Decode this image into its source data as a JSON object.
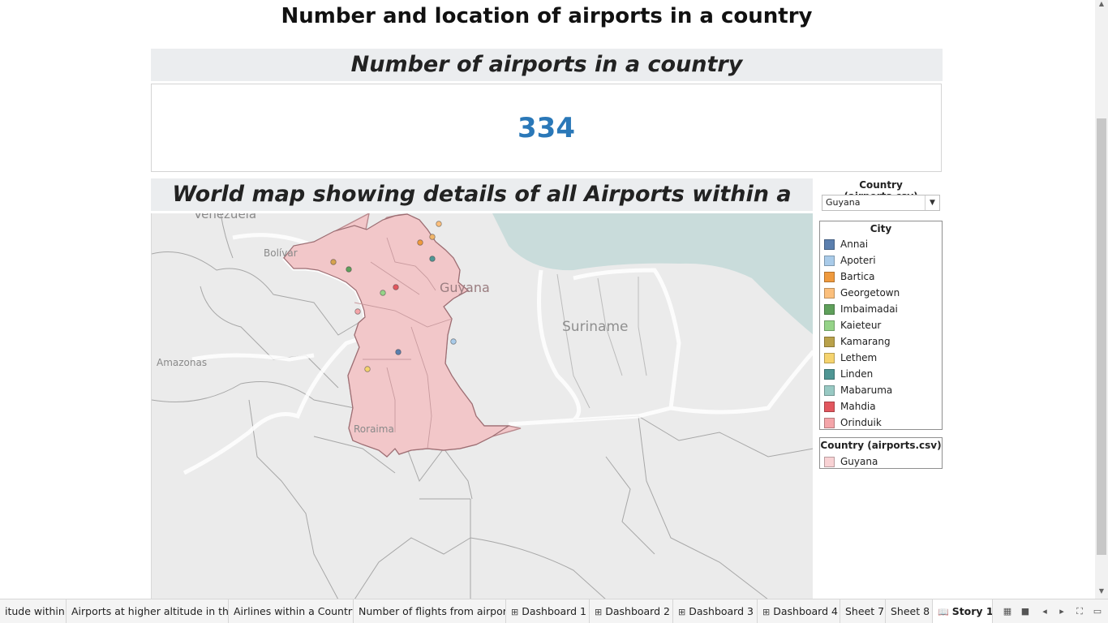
{
  "story": {
    "title": "Number and location of airports in a country"
  },
  "kpi": {
    "header": "Number of airports in a country",
    "value": "334"
  },
  "map": {
    "header": "World map showing details of all Airports within a Country",
    "labels": {
      "venezuela": "Venezuela",
      "bolivar": "Bolívar",
      "amazonas": "Amazonas",
      "roraima": "Roraima",
      "suriname": "Suriname",
      "guyana": "Guyana"
    }
  },
  "filter": {
    "title": "Country (airports.csv)",
    "selected": "Guyana"
  },
  "legend_city": {
    "title": "City",
    "items": [
      {
        "label": "Annai",
        "color": "#5b7fae"
      },
      {
        "label": "Apoteri",
        "color": "#a9cbe9"
      },
      {
        "label": "Bartica",
        "color": "#ef9a3e"
      },
      {
        "label": "Georgetown",
        "color": "#fbbf7c"
      },
      {
        "label": "Imbaimadai",
        "color": "#5fa05b"
      },
      {
        "label": "Kaieteur",
        "color": "#95d388"
      },
      {
        "label": "Kamarang",
        "color": "#b9a14a"
      },
      {
        "label": "Lethem",
        "color": "#f5d36e"
      },
      {
        "label": "Linden",
        "color": "#4f9694"
      },
      {
        "label": "Mabaruma",
        "color": "#98c9c3"
      },
      {
        "label": "Mahdia",
        "color": "#e2575f"
      },
      {
        "label": "Orinduik",
        "color": "#f4a5a9"
      }
    ]
  },
  "legend_country": {
    "title": "Country (airports.csv)",
    "items": [
      {
        "label": "Guyana",
        "color": "#f8d2d4"
      }
    ]
  },
  "tabs": [
    {
      "label": "itude within..."
    },
    {
      "label": "Airports at higher altitude in the ..."
    },
    {
      "label": "Airlines within a Country"
    },
    {
      "label": "Number of flights from airport"
    },
    {
      "label": "Dashboard 1",
      "icon": "dashboard-icon"
    },
    {
      "label": "Dashboard 2",
      "icon": "dashboard-icon"
    },
    {
      "label": "Dashboard 3",
      "icon": "dashboard-icon"
    },
    {
      "label": "Dashboard 4",
      "icon": "dashboard-icon"
    },
    {
      "label": "Sheet 7"
    },
    {
      "label": "Sheet 8"
    },
    {
      "label": "Story 1",
      "icon": "story-icon",
      "active": true
    }
  ],
  "colors": {
    "guyana_fill": "#f2c7c9",
    "guyana_border": "#b98a8e",
    "ocean": "#c9dcdb",
    "land": "#ebebeb",
    "kpi_value": "#2a78b8"
  }
}
